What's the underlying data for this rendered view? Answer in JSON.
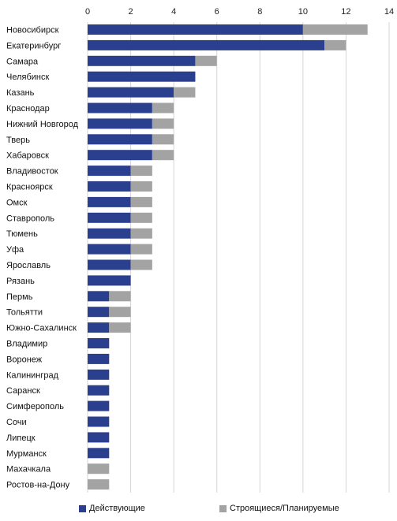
{
  "chart_data": {
    "type": "bar",
    "orientation": "horizontal",
    "stacked": true,
    "title": "",
    "xlabel": "",
    "ylabel": "",
    "xlim": [
      0,
      14
    ],
    "xticks": [
      0,
      2,
      4,
      6,
      8,
      10,
      12,
      14
    ],
    "xaxis_position": "top",
    "grid": "vertical",
    "legend_position": "bottom",
    "categories": [
      "Новосибирск",
      "Екатеринбург",
      "Самара",
      "Челябинск",
      "Казань",
      "Краснодар",
      "Нижний Новгород",
      "Тверь",
      "Хабаровск",
      "Владивосток",
      "Красноярск",
      "Омск",
      "Ставрополь",
      "Тюмень",
      "Уфа",
      "Ярославль",
      "Рязань",
      "Пермь",
      "Тольятти",
      "Южно-Сахалинск",
      "Владимир",
      "Воронеж",
      "Калининград",
      "Саранск",
      "Симферополь",
      "Сочи",
      "Липецк",
      "Мурманск",
      "Махачкала",
      "Ростов-на-Дону"
    ],
    "series": [
      {
        "name": "Действующие",
        "color": "#2b3f8f",
        "values": [
          10,
          11,
          5,
          5,
          4,
          3,
          3,
          3,
          3,
          2,
          2,
          2,
          2,
          2,
          2,
          2,
          2,
          1,
          1,
          1,
          1,
          1,
          1,
          1,
          1,
          1,
          1,
          1,
          0,
          0
        ]
      },
      {
        "name": "Строящиеся/Планируемые",
        "color": "#a3a3a3",
        "values": [
          3,
          1,
          1,
          0,
          1,
          1,
          1,
          1,
          1,
          1,
          1,
          1,
          1,
          1,
          1,
          1,
          0,
          1,
          1,
          1,
          0,
          0,
          0,
          0,
          0,
          0,
          0,
          0,
          1,
          1
        ]
      }
    ]
  }
}
